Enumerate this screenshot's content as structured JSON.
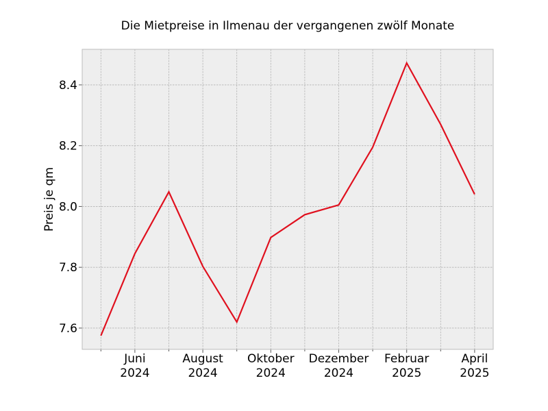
{
  "chart_data": {
    "type": "line",
    "title": "Die Mietpreise in Ilmenau der vergangenen zwölf Monate",
    "xlabel": "",
    "ylabel": "Preis je qm",
    "x": [
      "2024-05",
      "2024-06",
      "2024-07",
      "2024-08",
      "2024-09",
      "2024-10",
      "2024-11",
      "2024-12",
      "2025-01",
      "2025-02",
      "2025-03",
      "2025-04"
    ],
    "series": [
      {
        "values": [
          7.575,
          7.845,
          8.048,
          7.803,
          7.62,
          7.898,
          7.973,
          8.005,
          8.195,
          8.472,
          8.27,
          8.04
        ]
      }
    ],
    "x_ticks": [
      {
        "month": "Juni",
        "year": "2024"
      },
      {
        "month": "August",
        "year": "2024"
      },
      {
        "month": "Oktober",
        "year": "2024"
      },
      {
        "month": "Dezember",
        "year": "2024"
      },
      {
        "month": "Februar",
        "year": "2025"
      },
      {
        "month": "April",
        "year": "2025"
      }
    ],
    "y_ticks": [
      "7.6",
      "7.8",
      "8.0",
      "8.2",
      "8.4"
    ],
    "y_tick_values": [
      7.6,
      7.8,
      8.0,
      8.2,
      8.4
    ],
    "ylim": [
      7.53,
      8.517
    ],
    "grid": true,
    "colors": {
      "line": "#e0101e",
      "plot_background": "#eeeeee",
      "grid": "#b3b3b3",
      "frame": "#bcbcbc"
    }
  }
}
